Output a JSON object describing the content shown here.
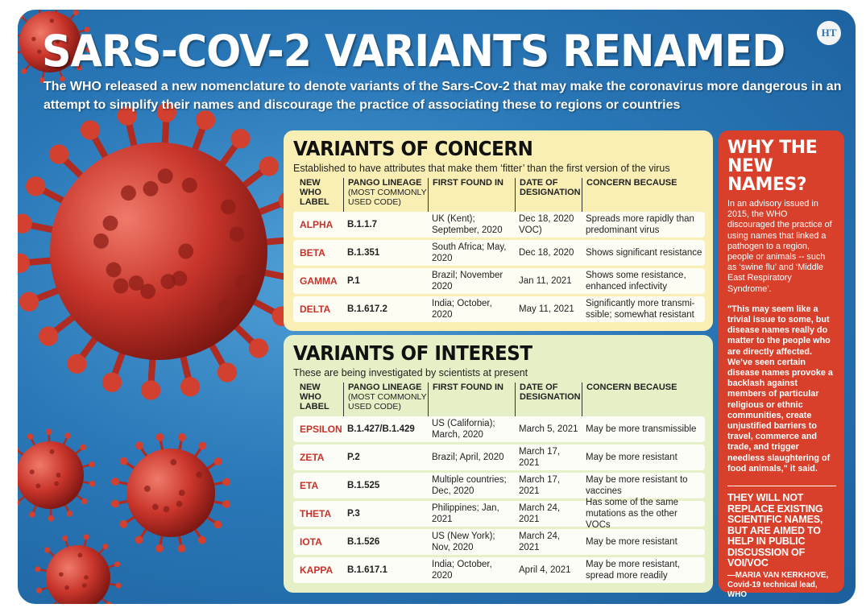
{
  "logo": {
    "text": "HT"
  },
  "title": "SARS-COV-2 VARIANTS RENAMED",
  "subtitle": "The WHO released a new nomenclature to denote variants of the Sars-Cov-2 that may make the coronavirus more dangerous in an attempt to simplify their names and discourage the practice of associating these to regions or countries",
  "headers": {
    "label": "NEW WHO LABEL",
    "lineage": "PANGO LINEAGE",
    "lineage_note": "(MOST COMMONLY USED CODE)",
    "first_found": "FIRST FOUND IN",
    "date": "DATE OF DESIGNATION",
    "concern": "CONCERN BECAUSE"
  },
  "concern": {
    "title": "VARIANTS OF CONCERN",
    "subtitle": "Established to have attributes that make them ‘fitter’ than the first version of the virus",
    "rows": [
      {
        "label": "ALPHA",
        "lineage": "B.1.1.7",
        "found": "UK (Kent); September, 2020",
        "date": "Dec 18, 2020 VOC)",
        "reason": "Spreads more rapidly than predominant virus"
      },
      {
        "label": "BETA",
        "lineage": "B.1.351",
        "found": "South Africa; May, 2020",
        "date": "Dec 18, 2020",
        "reason": "Shows significant resistance"
      },
      {
        "label": "GAMMA",
        "lineage": "P.1",
        "found": "Brazil; November 2020",
        "date": "Jan 11, 2021",
        "reason": "Shows some resistance, enhanced infectivity"
      },
      {
        "label": "DELTA",
        "lineage": "B.1.617.2",
        "found": "India; October, 2020",
        "date": "May 11, 2021",
        "reason": "Significantly more transmi- ssible; somewhat resistant"
      }
    ]
  },
  "interest": {
    "title": "VARIANTS OF INTEREST",
    "subtitle": "These are being investigated by scientists at present",
    "rows": [
      {
        "label": "EPSILON",
        "lineage": "B.1.427/B.1.429",
        "found": "US (California); March, 2020",
        "date": "March 5, 2021",
        "reason": "May be more transmissible"
      },
      {
        "label": "ZETA",
        "lineage": "P.2",
        "found": "Brazil; April, 2020",
        "date": "March 17, 2021",
        "reason": "May be more resistant"
      },
      {
        "label": "ETA",
        "lineage": "B.1.525",
        "found": "Multiple countries; Dec, 2020",
        "date": "March 17, 2021",
        "reason": "May be more resistant to vaccines"
      },
      {
        "label": "THETA",
        "lineage": "P.3",
        "found": "Philippines; Jan, 2021",
        "date": "March 24, 2021",
        "reason": "Has some of the same mutations as the other VOCs"
      },
      {
        "label": "IOTA",
        "lineage": "B.1.526",
        "found": "US (New York); Nov, 2020",
        "date": "March 24, 2021",
        "reason": "May be more resistant"
      },
      {
        "label": "KAPPA",
        "lineage": "B.1.617.1",
        "found": "India; October, 2020",
        "date": "April 4, 2021",
        "reason": "May be more resistant, spread more readily"
      }
    ]
  },
  "why": {
    "title": "WHY THE NEW NAMES?",
    "text": "In an advisory issued in 2015, the WHO discouraged the practice of using names that linked a pathogen to a region, people or animals -- such as ‘swine flu’ and ‘Middle East Respiratory Syndrome’.",
    "quote": "\"This may seem like a trivial issue to some, but disease names really do matter to the people who are directly affected. We’ve seen certain disease names provoke a backlash against members of particular religious or ethnic communities, create unjustified barriers to travel, commerce and trade, and trigger needless slaughtering of food animals,\" it said.",
    "pull_quote": "THEY WILL NOT REPLACE EXISTING SCIENTIFIC NAMES, BUT ARE AIMED TO HELP IN PUBLIC DISCUSSION OF VOI/VOC",
    "attribution": "—MARIA VAN KERKHOVE, Covid-19 technical lead, WHO"
  },
  "colors": {
    "background": "#2a78b8",
    "concern_panel": "#f9efb4",
    "interest_panel": "#e6f0c7",
    "why_panel": "#d9402b",
    "variant_label": "#c8312a",
    "virus": "#c9352b"
  },
  "icons": [
    "virus-illustration"
  ]
}
